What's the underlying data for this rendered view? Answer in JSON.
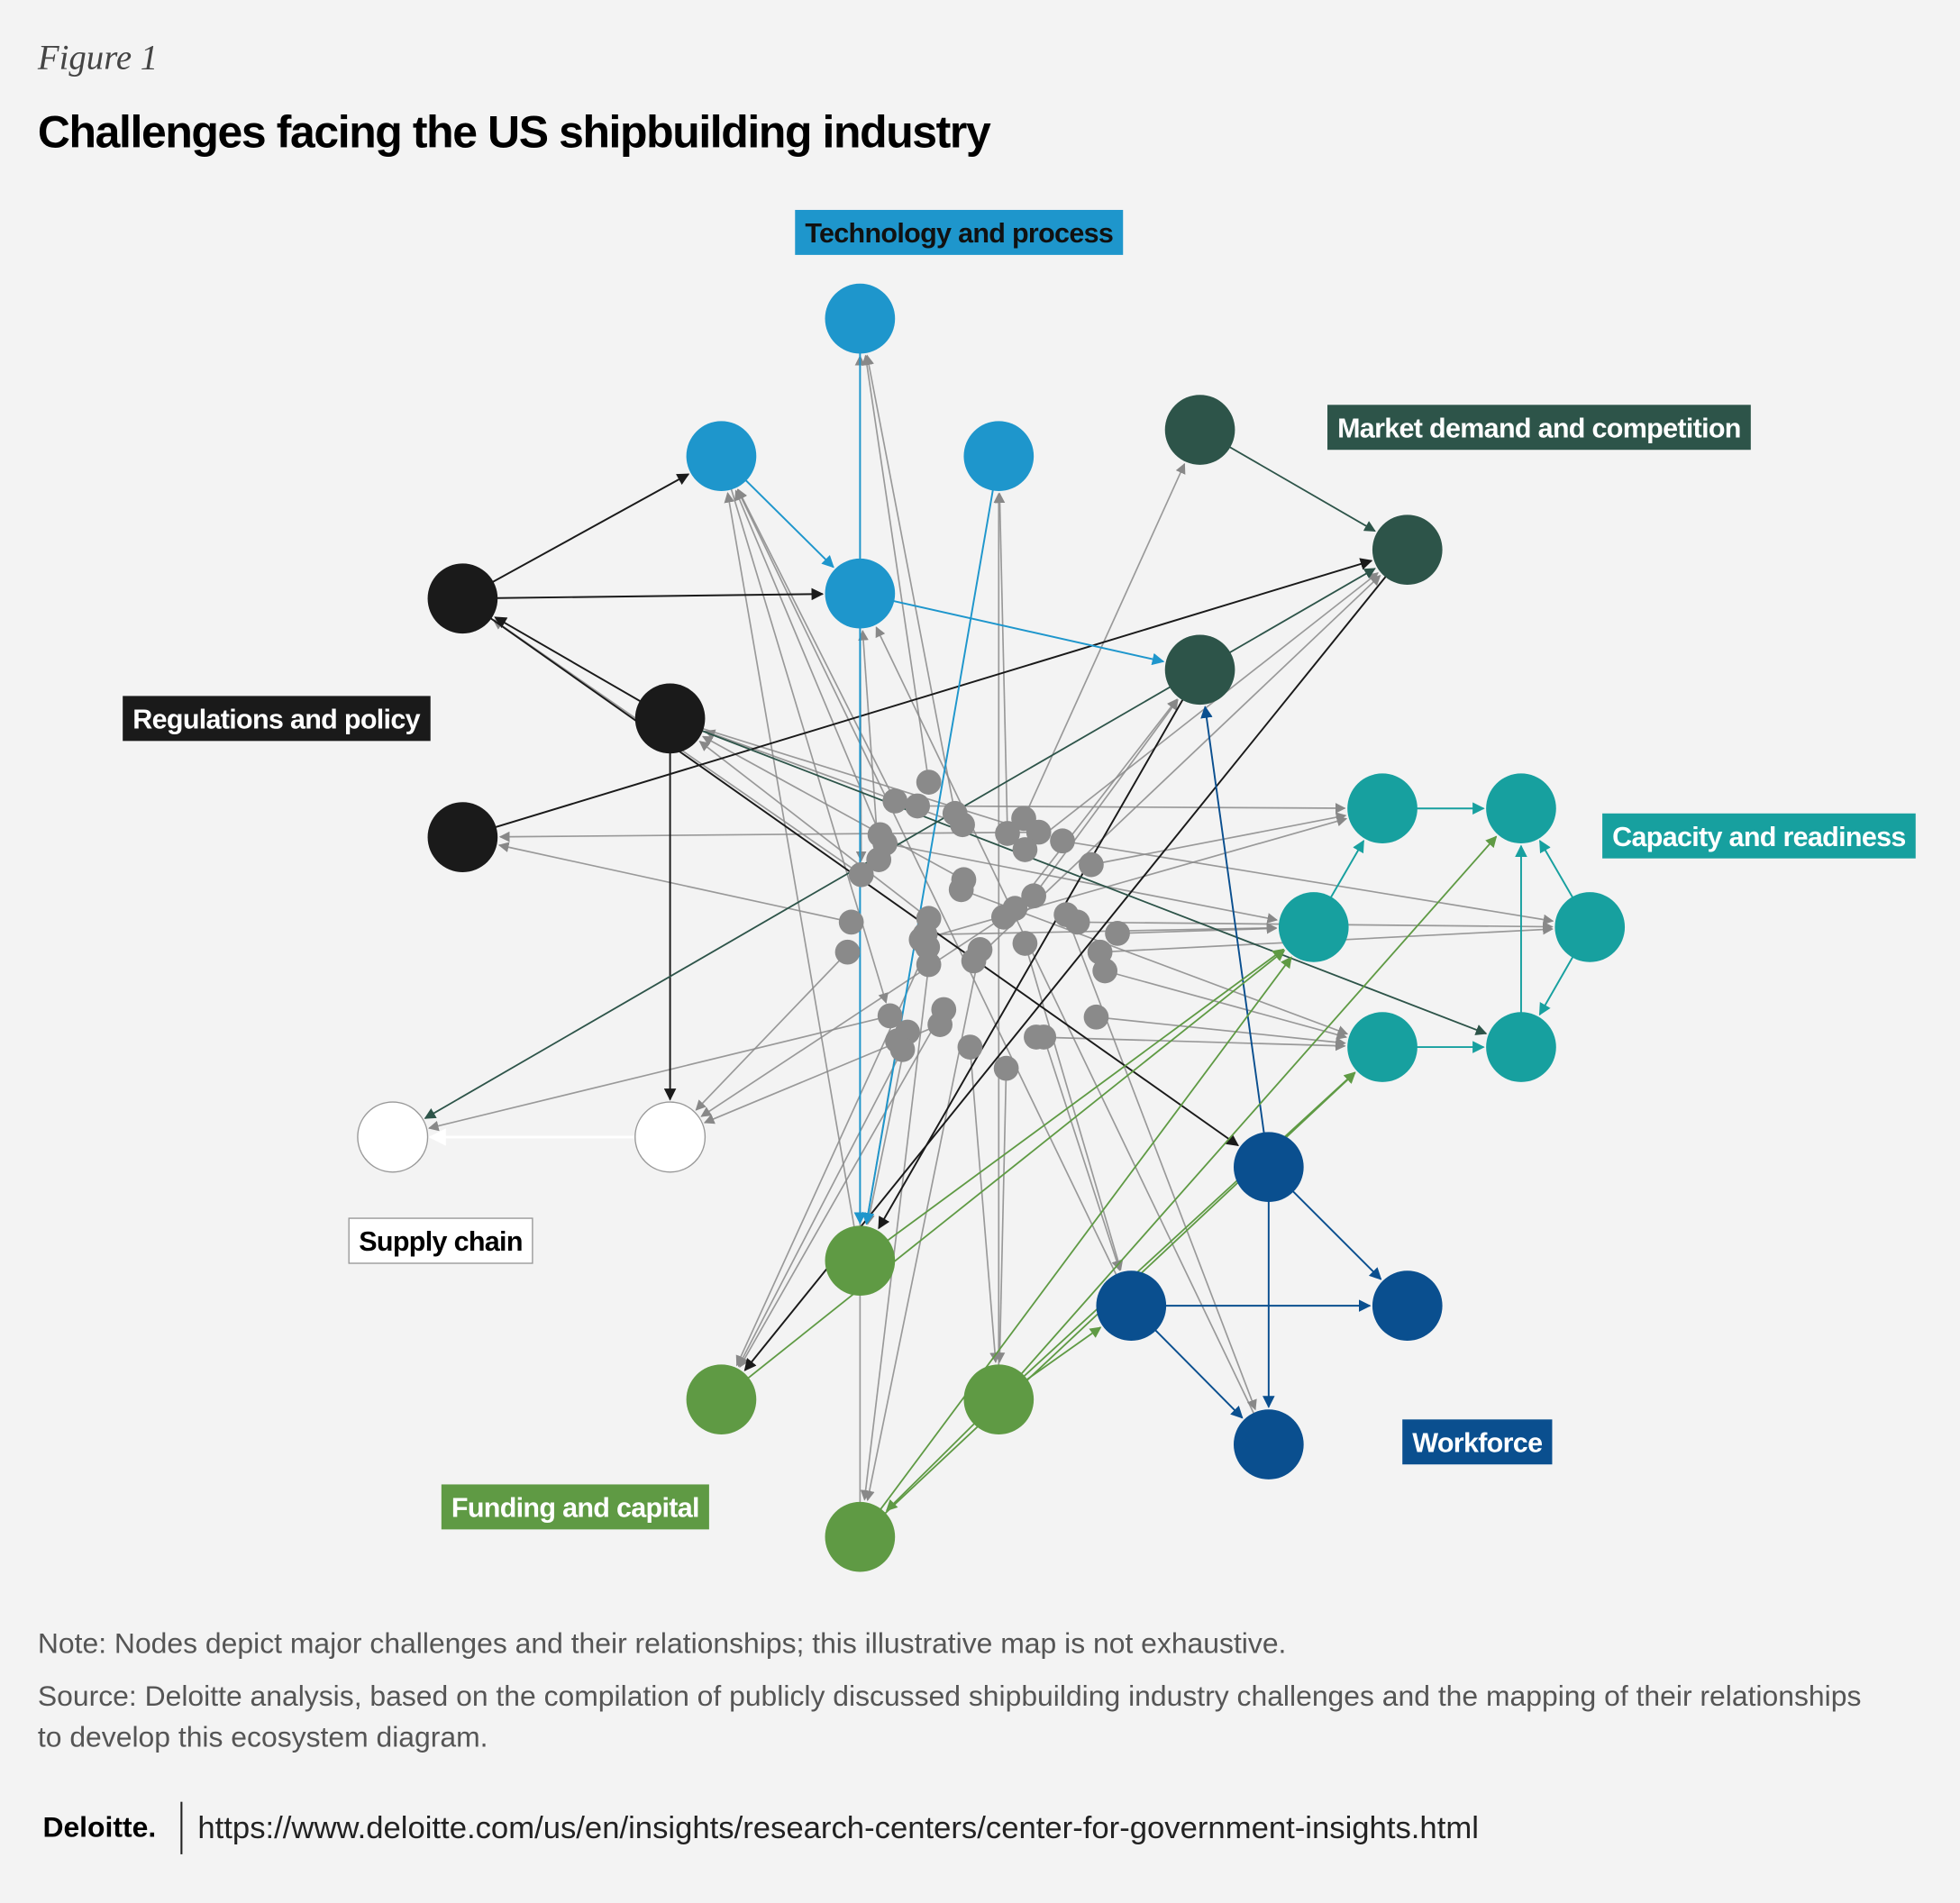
{
  "header": {
    "figure_label": "Figure 1",
    "title": "Challenges facing the US shipbuilding industry"
  },
  "groups": [
    {
      "label": "Technology and process"
    },
    {
      "label": "Market demand and competition"
    },
    {
      "label": "Regulations and policy"
    },
    {
      "label": "Capacity and readiness"
    },
    {
      "label": "Supply chain"
    },
    {
      "label": "Workforce"
    },
    {
      "label": "Funding and capital"
    }
  ],
  "note": "Note: Nodes depict major challenges and their relationships; this illustrative map is not exhaustive.",
  "source_lines": [
    "Source: Deloitte analysis, based on the compilation of publicly discussed shipbuilding industry challenges and the mapping of their relationships",
    "to develop this ecosystem diagram."
  ],
  "footer": {
    "logo": "Deloitte.",
    "url": "https://www.deloitte.com/us/en/insights/research-centers/center-for-government-insights.html"
  }
}
